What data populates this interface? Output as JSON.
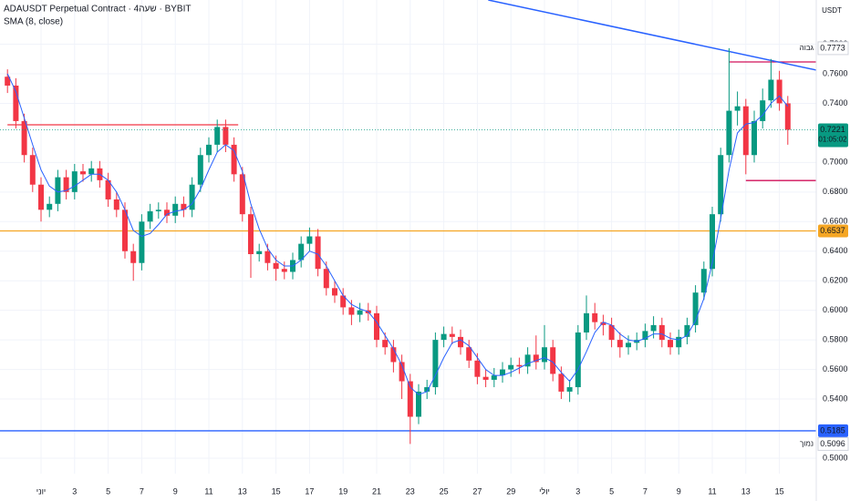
{
  "chart_data": {
    "type": "candlestick",
    "title": "ADAUSDT Perpetual Contract · 4שעה · BYBIT",
    "indicator_label": "SMA (8, close)",
    "currency": "USDT",
    "countdown": "01:05:02",
    "up_color": "#089981",
    "down_color": "#f23645",
    "categories": [
      null,
      null,
      null,
      null,
      "יוני",
      null,
      null,
      null,
      "3",
      null,
      null,
      null,
      "5",
      null,
      null,
      null,
      "7",
      null,
      null,
      null,
      "9",
      null,
      null,
      null,
      "11",
      null,
      null,
      null,
      "13",
      null,
      null,
      null,
      "15",
      null,
      null,
      null,
      "17",
      null,
      null,
      null,
      "19",
      null,
      null,
      null,
      "21",
      null,
      null,
      null,
      "23",
      null,
      null,
      null,
      "25",
      null,
      null,
      null,
      "27",
      null,
      null,
      null,
      "29",
      null,
      null,
      null,
      "יולי",
      null,
      null,
      null,
      "3",
      null,
      null,
      null,
      "5",
      null,
      null,
      null,
      "7",
      null,
      null,
      null,
      "9",
      null,
      null,
      null,
      "11",
      null,
      null,
      null,
      "13",
      null,
      null,
      null,
      "15",
      null
    ],
    "open": [
      0.758,
      0.752,
      0.728,
      0.705,
      0.685,
      0.668,
      0.672,
      0.69,
      0.68,
      0.694,
      0.692,
      0.696,
      0.688,
      0.675,
      0.668,
      0.64,
      0.632,
      0.66,
      0.667,
      0.668,
      0.664,
      0.672,
      0.668,
      0.685,
      0.705,
      0.712,
      0.724,
      0.712,
      0.692,
      0.665,
      0.638,
      0.64,
      0.632,
      0.628,
      0.626,
      0.634,
      0.645,
      0.65,
      0.628,
      0.615,
      0.61,
      0.602,
      0.597,
      0.6,
      0.598,
      0.58,
      0.575,
      0.565,
      0.552,
      0.528,
      0.545,
      0.548,
      0.58,
      0.584,
      0.582,
      0.575,
      0.566,
      0.555,
      0.553,
      0.556,
      0.56,
      0.563,
      0.562,
      0.57,
      0.565,
      0.575,
      0.557,
      0.545,
      0.548,
      0.585,
      0.598,
      0.592,
      0.59,
      0.58,
      0.575,
      0.578,
      0.58,
      0.586,
      0.59,
      0.58,
      0.575,
      0.582,
      0.59,
      0.612,
      0.628,
      0.665,
      0.705,
      0.735,
      0.738,
      0.705,
      0.728,
      0.742,
      0.756,
      0.74
    ],
    "high": [
      0.763,
      0.757,
      0.733,
      0.71,
      0.69,
      0.677,
      0.695,
      0.695,
      0.699,
      0.699,
      0.701,
      0.701,
      0.693,
      0.68,
      0.673,
      0.645,
      0.665,
      0.672,
      0.673,
      0.673,
      0.677,
      0.677,
      0.69,
      0.71,
      0.717,
      0.729,
      0.729,
      0.717,
      0.697,
      0.67,
      0.645,
      0.645,
      0.637,
      0.633,
      0.639,
      0.65,
      0.656,
      0.655,
      0.633,
      0.62,
      0.615,
      0.607,
      0.605,
      0.605,
      0.603,
      0.585,
      0.58,
      0.57,
      0.557,
      0.55,
      0.553,
      0.585,
      0.589,
      0.589,
      0.587,
      0.58,
      0.571,
      0.56,
      0.561,
      0.565,
      0.568,
      0.568,
      0.575,
      0.583,
      0.59,
      0.58,
      0.562,
      0.553,
      0.59,
      0.61,
      0.605,
      0.597,
      0.595,
      0.585,
      0.583,
      0.585,
      0.591,
      0.596,
      0.595,
      0.585,
      0.587,
      0.595,
      0.617,
      0.633,
      0.67,
      0.71,
      0.7773,
      0.748,
      0.743,
      0.735,
      0.75,
      0.77,
      0.762,
      0.745
    ],
    "low": [
      0.747,
      0.723,
      0.7,
      0.68,
      0.66,
      0.663,
      0.667,
      0.675,
      0.675,
      0.687,
      0.687,
      0.683,
      0.67,
      0.663,
      0.635,
      0.62,
      0.627,
      0.655,
      0.662,
      0.659,
      0.659,
      0.663,
      0.663,
      0.68,
      0.7,
      0.707,
      0.707,
      0.687,
      0.66,
      0.622,
      0.633,
      0.627,
      0.62,
      0.621,
      0.621,
      0.629,
      0.64,
      0.623,
      0.61,
      0.605,
      0.597,
      0.59,
      0.592,
      0.593,
      0.575,
      0.57,
      0.558,
      0.54,
      0.5096,
      0.523,
      0.54,
      0.543,
      0.575,
      0.577,
      0.57,
      0.561,
      0.55,
      0.548,
      0.548,
      0.551,
      0.555,
      0.557,
      0.557,
      0.56,
      0.56,
      0.552,
      0.54,
      0.538,
      0.543,
      0.58,
      0.587,
      0.583,
      0.575,
      0.568,
      0.57,
      0.573,
      0.575,
      0.581,
      0.575,
      0.57,
      0.57,
      0.577,
      0.585,
      0.607,
      0.623,
      0.66,
      0.7,
      0.725,
      0.692,
      0.7,
      0.723,
      0.737,
      0.735,
      0.712
    ],
    "close": [
      0.752,
      0.728,
      0.705,
      0.685,
      0.668,
      0.672,
      0.69,
      0.68,
      0.694,
      0.692,
      0.696,
      0.688,
      0.675,
      0.668,
      0.64,
      0.632,
      0.66,
      0.667,
      0.668,
      0.664,
      0.672,
      0.668,
      0.685,
      0.705,
      0.712,
      0.724,
      0.712,
      0.692,
      0.665,
      0.638,
      0.64,
      0.632,
      0.628,
      0.626,
      0.634,
      0.645,
      0.65,
      0.628,
      0.615,
      0.61,
      0.602,
      0.597,
      0.6,
      0.598,
      0.58,
      0.575,
      0.565,
      0.552,
      0.528,
      0.545,
      0.548,
      0.58,
      0.584,
      0.582,
      0.575,
      0.566,
      0.555,
      0.553,
      0.556,
      0.56,
      0.563,
      0.562,
      0.57,
      0.565,
      0.575,
      0.557,
      0.545,
      0.548,
      0.585,
      0.598,
      0.592,
      0.59,
      0.58,
      0.575,
      0.578,
      0.58,
      0.586,
      0.59,
      0.58,
      0.575,
      0.582,
      0.59,
      0.612,
      0.628,
      0.665,
      0.705,
      0.735,
      0.738,
      0.705,
      0.728,
      0.742,
      0.756,
      0.74,
      0.7221
    ],
    "sma": {
      "color": "#2962ff",
      "values": [
        0.76,
        0.748,
        0.73,
        0.712,
        0.695,
        0.684,
        0.68,
        0.681,
        0.684,
        0.688,
        0.692,
        0.692,
        0.688,
        0.68,
        0.668,
        0.654,
        0.65,
        0.652,
        0.658,
        0.665,
        0.667,
        0.668,
        0.672,
        0.682,
        0.695,
        0.707,
        0.712,
        0.708,
        0.694,
        0.672,
        0.655,
        0.642,
        0.634,
        0.63,
        0.63,
        0.634,
        0.64,
        0.638,
        0.63,
        0.62,
        0.61,
        0.604,
        0.601,
        0.599,
        0.592,
        0.583,
        0.574,
        0.563,
        0.548,
        0.543,
        0.545,
        0.556,
        0.568,
        0.578,
        0.58,
        0.576,
        0.568,
        0.56,
        0.556,
        0.556,
        0.558,
        0.561,
        0.564,
        0.566,
        0.568,
        0.565,
        0.558,
        0.552,
        0.56,
        0.572,
        0.585,
        0.592,
        0.59,
        0.584,
        0.58,
        0.579,
        0.581,
        0.584,
        0.584,
        0.581,
        0.58,
        0.583,
        0.593,
        0.608,
        0.632,
        0.662,
        0.695,
        0.72,
        0.726,
        0.727,
        0.732,
        0.74,
        0.745,
        0.738
      ]
    },
    "ylim": [
      0.4895,
      0.8099
    ],
    "yticks": [
      {
        "value": 0.5,
        "label": "0.5000"
      },
      {
        "value": 0.54,
        "label": "0.5400"
      },
      {
        "value": 0.56,
        "label": "0.5600"
      },
      {
        "value": 0.58,
        "label": "0.5800"
      },
      {
        "value": 0.6,
        "label": "0.6000"
      },
      {
        "value": 0.62,
        "label": "0.6200"
      },
      {
        "value": 0.64,
        "label": "0.6400"
      },
      {
        "value": 0.66,
        "label": "0.6600"
      },
      {
        "value": 0.68,
        "label": "0.6800"
      },
      {
        "value": 0.7,
        "label": "0.7000"
      },
      {
        "value": 0.74,
        "label": "0.7400"
      },
      {
        "value": 0.76,
        "label": "0.7600"
      },
      {
        "value": 0.78,
        "label": "0.7800"
      }
    ],
    "levels": [
      {
        "value": 0.7255,
        "color": "#f23645",
        "from": 0,
        "to": 27.5,
        "axis_label": false
      },
      {
        "value": 0.6537,
        "color": "#f5a623",
        "from": -1,
        "to": 96.4,
        "axis_label": true
      },
      {
        "value": 0.5185,
        "color": "#2962ff",
        "from": -1,
        "to": 96.4,
        "axis_label": true
      },
      {
        "value": 0.768,
        "color": "#d0105a",
        "from": 86,
        "to": 96.4,
        "axis_label": false
      },
      {
        "value": 0.6878,
        "color": "#d0105a",
        "from": 88,
        "to": 96.4,
        "axis_label": false
      }
    ],
    "trendline": {
      "color": "#2962ff",
      "x": [
        57.3,
        96.4
      ],
      "y": [
        0.8099,
        0.7625
      ]
    },
    "high_marker": {
      "label": "גבוה",
      "value": 0.7773
    },
    "low_marker": {
      "label": "נמוך",
      "value": 0.5096
    }
  }
}
